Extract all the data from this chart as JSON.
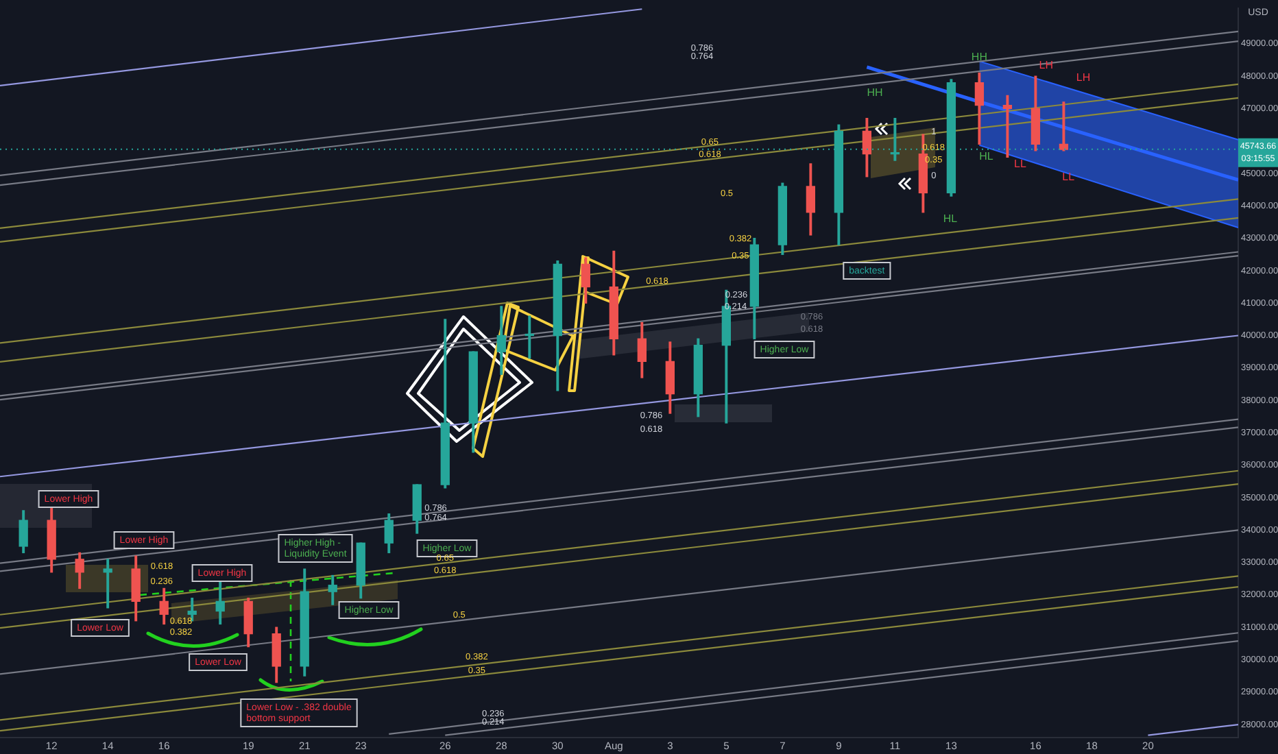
{
  "chart_data": {
    "type": "candlestick",
    "ylabel": "USD",
    "x": [
      "--07-11",
      "--07-12",
      "--07-13",
      "--07-14",
      "--07-15",
      "--07-16",
      "--07-17",
      "--07-18",
      "--07-19",
      "--07-20",
      "--07-21",
      "--07-22",
      "--07-23",
      "--07-24",
      "--07-25",
      "--07-26",
      "--07-27",
      "--07-28",
      "--07-29",
      "--07-30",
      "--07-31",
      "--08-01",
      "--08-02",
      "--08-03",
      "--08-04",
      "--08-05",
      "--08-06",
      "--08-07",
      "--08-08",
      "--08-09",
      "--08-10",
      "--08-11",
      "--08-12",
      "--08-13",
      "--08-14",
      "--08-15",
      "--08-16",
      "--08-17"
    ],
    "ohlc": [
      [
        33500,
        34600,
        33300,
        34300
      ],
      [
        34300,
        34700,
        32700,
        33100
      ],
      [
        33100,
        33300,
        32200,
        32700
      ],
      [
        32700,
        33100,
        31600,
        32800
      ],
      [
        32800,
        33200,
        31200,
        31800
      ],
      [
        31800,
        32200,
        31100,
        31400
      ],
      [
        31400,
        31900,
        31200,
        31500
      ],
      [
        31500,
        32400,
        31100,
        31800
      ],
      [
        31800,
        31900,
        30400,
        30800
      ],
      [
        30800,
        31000,
        29300,
        29800
      ],
      [
        29800,
        32800,
        29500,
        32100
      ],
      [
        32100,
        32600,
        31700,
        32300
      ],
      [
        32300,
        33600,
        31900,
        33600
      ],
      [
        33600,
        34500,
        33300,
        34300
      ],
      [
        34300,
        35400,
        33900,
        35400
      ],
      [
        35400,
        40500,
        35300,
        37300
      ],
      [
        37300,
        39500,
        36400,
        39500
      ],
      [
        39500,
        40900,
        38800,
        40000
      ],
      [
        40000,
        40600,
        39300,
        40000
      ],
      [
        40000,
        42300,
        38300,
        42200
      ],
      [
        42200,
        42400,
        41000,
        41500
      ],
      [
        41500,
        42600,
        39400,
        39900
      ],
      [
        39900,
        40400,
        38700,
        39200
      ],
      [
        39200,
        39800,
        37600,
        38200
      ],
      [
        38200,
        39900,
        37500,
        39700
      ],
      [
        39700,
        41400,
        37300,
        40900
      ],
      [
        40900,
        43000,
        39900,
        42800
      ],
      [
        42800,
        44700,
        42500,
        44600
      ],
      [
        44600,
        45300,
        43100,
        43800
      ],
      [
        43800,
        46500,
        42800,
        46300
      ],
      [
        46300,
        46700,
        44900,
        45600
      ],
      [
        45600,
        46700,
        45400,
        45600
      ],
      [
        45600,
        46200,
        43800,
        44400
      ],
      [
        44400,
        47900,
        44300,
        47800
      ],
      [
        47800,
        48100,
        45900,
        47100
      ],
      [
        47100,
        47400,
        45500,
        47000
      ],
      [
        47000,
        48000,
        45700,
        45900
      ],
      [
        45900,
        47200,
        45700,
        45740
      ]
    ],
    "series": [
      {
        "type": "line",
        "color": "#787b86",
        "x": [
          "--07-10T04:00",
          "--08-23T05:00"
        ],
        "values": [
          44940,
          49380
        ]
      },
      {
        "type": "line",
        "color": "#787b86",
        "x": [
          "--07-10T04:00",
          "--08-23T05:00"
        ],
        "values": [
          44640,
          49080
        ]
      },
      {
        "type": "line",
        "color": "#8c8a3c",
        "x": [
          "--07-10T04:00",
          "--08-23T05:00"
        ],
        "values": [
          43310,
          47750
        ]
      },
      {
        "type": "line",
        "color": "#8c8a3c",
        "x": [
          "--07-10T04:00",
          "--08-23T05:00"
        ],
        "values": [
          42890,
          47330
        ]
      },
      {
        "type": "line",
        "color": "#8c8a3c",
        "x": [
          "--07-10T04:00",
          "--08-23T05:00"
        ],
        "values": [
          39770,
          44210
        ]
      },
      {
        "type": "line",
        "color": "#8c8a3c",
        "x": [
          "--07-10T04:00",
          "--08-23T05:00"
        ],
        "values": [
          39190,
          43630
        ]
      },
      {
        "type": "line",
        "color": "#787b86",
        "x": [
          "--07-10T04:00",
          "--08-23T05:00"
        ],
        "values": [
          38140,
          42580
        ]
      },
      {
        "type": "line",
        "color": "#787b86",
        "x": [
          "--07-10T04:00",
          "--08-23T05:00"
        ],
        "values": [
          38020,
          42460
        ]
      },
      {
        "type": "line",
        "color": "#9598e0",
        "x": [
          "--07-10T04:00",
          "--08-23T05:00"
        ],
        "values": [
          35650,
          40000
        ]
      },
      {
        "type": "line",
        "color": "#787b86",
        "x": [
          "--07-10T04:00",
          "--08-23T05:00"
        ],
        "values": [
          32980,
          37420
        ]
      },
      {
        "type": "line",
        "color": "#787b86",
        "x": [
          "--07-10T04:00",
          "--08-23T05:00"
        ],
        "values": [
          32730,
          37170
        ]
      },
      {
        "type": "line",
        "color": "#8c8a3c",
        "x": [
          "--07-10T04:00",
          "--08-23T05:00"
        ],
        "values": [
          31390,
          35830
        ]
      },
      {
        "type": "line",
        "color": "#8c8a3c",
        "x": [
          "--07-10T04:00",
          "--08-23T05:00"
        ],
        "values": [
          30980,
          35420
        ]
      },
      {
        "type": "line",
        "color": "#787b86",
        "x": [
          "--07-10T04:00",
          "--08-23T05:00"
        ],
        "values": [
          29560,
          34000
        ]
      },
      {
        "type": "line",
        "color": "#8c8a3c",
        "x": [
          "--07-10T04:00",
          "--08-23T05:00"
        ],
        "values": [
          28140,
          32580
        ]
      },
      {
        "type": "line",
        "color": "#8c8a3c",
        "x": [
          "--07-10T04:00",
          "--08-23T05:00"
        ],
        "values": [
          27810,
          32250
        ]
      },
      {
        "type": "line",
        "color": "#787b86",
        "x": [
          "--07-24",
          "--08-23T05:00"
        ],
        "values": [
          27710,
          30830
        ]
      },
      {
        "type": "line",
        "color": "#787b86",
        "x": [
          "--07-26",
          "--08-23T05:00"
        ],
        "values": [
          27670,
          30580
        ]
      },
      {
        "type": "line",
        "color": "#9598e0",
        "x": [
          "--08-20",
          "--08-23T05:00"
        ],
        "values": [
          27670,
          28000
        ]
      },
      {
        "type": "line",
        "color": "#9598e0",
        "x": [
          "--07-10T04:00",
          "--08-02"
        ],
        "values": [
          47710,
          50070
        ]
      },
      {
        "type": "line",
        "color": "#2962ff",
        "x": [
          "--08-10",
          "--08-14",
          "--08-23T05:00"
        ],
        "values": [
          48280,
          47210,
          44800
        ],
        "lower": [
          null,
          45870,
          43330
        ],
        "upper": [
          null,
          48460,
          46040
        ]
      }
    ],
    "xlim": [
      "--07-10T04:00",
      "--08-23T05:00"
    ],
    "xticks": [
      {
        "value": "--07-12",
        "label": "12"
      },
      {
        "value": "--07-14",
        "label": "14"
      },
      {
        "value": "--07-16",
        "label": "16"
      },
      {
        "value": "--07-19",
        "label": "19"
      },
      {
        "value": "--07-21",
        "label": "21"
      },
      {
        "value": "--07-23",
        "label": "23"
      },
      {
        "value": "--07-26",
        "label": "26"
      },
      {
        "value": "--07-28",
        "label": "28"
      },
      {
        "value": "--07-30",
        "label": "30"
      },
      {
        "value": "--08-01",
        "label": "Aug"
      },
      {
        "value": "--08-03",
        "label": "3"
      },
      {
        "value": "--08-05",
        "label": "5"
      },
      {
        "value": "--08-07",
        "label": "7"
      },
      {
        "value": "--08-09",
        "label": "9"
      },
      {
        "value": "--08-11",
        "label": "11"
      },
      {
        "value": "--08-13",
        "label": "13"
      },
      {
        "value": "--08-16",
        "label": "16"
      },
      {
        "value": "--08-18",
        "label": "18"
      },
      {
        "value": "--08-20",
        "label": "20"
      }
    ],
    "ylim": [
      27600,
      50100
    ],
    "yticks": [
      {
        "value": 28000,
        "label": "28000.00"
      },
      {
        "value": 29000,
        "label": "29000.00"
      },
      {
        "value": 30000,
        "label": "30000.00"
      },
      {
        "value": 31000,
        "label": "31000.00"
      },
      {
        "value": 32000,
        "label": "32000.00"
      },
      {
        "value": 33000,
        "label": "33000.00"
      },
      {
        "value": 34000,
        "label": "34000.00"
      },
      {
        "value": 35000,
        "label": "35000.00"
      },
      {
        "value": 36000,
        "label": "36000.00"
      },
      {
        "value": 37000,
        "label": "37000.00"
      },
      {
        "value": 38000,
        "label": "38000.00"
      },
      {
        "value": 39000,
        "label": "39000.00"
      },
      {
        "value": 40000,
        "label": "40000.00"
      },
      {
        "value": 41000,
        "label": "41000.00"
      },
      {
        "value": 42000,
        "label": "42000.00"
      },
      {
        "value": 43000,
        "label": "43000.00"
      },
      {
        "value": 44000,
        "label": "44000.00"
      },
      {
        "value": 45000,
        "label": "45000.00"
      },
      {
        "value": 47000,
        "label": "47000.00"
      },
      {
        "value": 48000,
        "label": "48000.00"
      },
      {
        "value": 49000,
        "label": "49000.00"
      }
    ],
    "ref_lines": [
      {
        "axis": "y",
        "value": 45743.66,
        "label": "45743.66",
        "color": "#26a69a",
        "line_style": "dotted"
      }
    ],
    "annotations": [
      "Lower High",
      "Lower High",
      "Lower High",
      "Lower Low",
      "Lower Low",
      "Lower Low - .382 double\nbottom support",
      "Higher High -\nLiquidity Event",
      "Higher Low",
      "Higher Low",
      "Higher Low",
      {
        "text": "backtest",
        "x": "--08-10T00:00",
        "y": 42000
      },
      "HH",
      {
        "text": "HH",
        "x": "--08-14T00:00",
        "y": 48580
      },
      {
        "text": "HL",
        "x": "--08-14",
        "y": 45900
      },
      "HL",
      {
        "text": "LH",
        "x": "--08-16T09:00",
        "y": 48330
      },
      "LH",
      "LL",
      {
        "text": "LL",
        "x": "--08-17T04:00",
        "y": 44880
      },
      "0.618",
      {
        "text": "0.236",
        "x": "--07-15T22:00",
        "y": 32420
      },
      "0.618",
      "0.382",
      {
        "text": "0.786",
        "x": "--07-25T16:00",
        "y": 34670
      },
      {
        "text": "0.764",
        "x": "--07-25T16:00",
        "y": 34380
      },
      {
        "text": "0.65",
        "x": "--07-26T00:00",
        "y": 33130
      },
      {
        "text": "0.618",
        "x": "--07-26T00:00",
        "y": 32750
      },
      {
        "text": "0.5",
        "x": "--07-26T12:00",
        "y": 31380
      },
      {
        "text": "0.382",
        "x": "--07-27T03:00",
        "y": 30080
      },
      {
        "text": "0.35",
        "x": "--07-27T03:00",
        "y": 29670
      },
      {
        "text": "0.236",
        "x": "--07-27T17:00",
        "y": 28330
      },
      {
        "text": "0.214",
        "x": "--07-27T17:00",
        "y": 28080
      },
      "0.786",
      "0.764",
      {
        "text": "0.65",
        "x": "--08-04T10:00",
        "y": 45960
      },
      {
        "text": "0.618",
        "x": "--08-04T10:00",
        "y": 45580
      },
      "0.5",
      "0.382",
      {
        "text": "0.35",
        "x": "--08-05T12:00",
        "y": 42460
      },
      {
        "text": "0.618",
        "x": "--08-02T13:00",
        "y": 41670
      },
      "0.236",
      {
        "text": "0.214",
        "x": "--08-05T08:00",
        "y": 40880
      },
      "0.786",
      "0.618",
      "0.786",
      "0.618",
      {
        "text": "1",
        "x": "--08-12T09:00",
        "y": 46290
      },
      {
        "text": "0.618",
        "x": "--08-12T09:00",
        "y": 45790
      },
      {
        "text": "0.35",
        "x": "--08-12T09:00",
        "y": 45420
      },
      {
        "text": "0",
        "x": "--08-12T09:00",
        "y": 44920
      },
      "03:15:55"
    ]
  }
}
